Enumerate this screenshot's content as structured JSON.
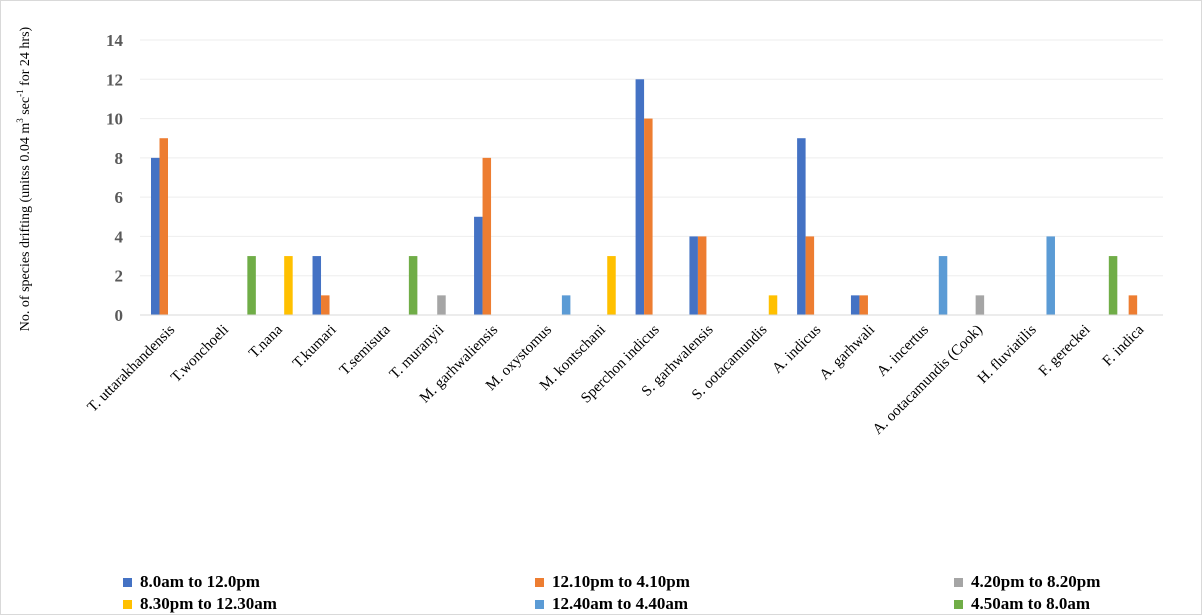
{
  "chart_data": {
    "type": "bar",
    "ylabel": "No. of species drifting (unitss 0.04 m",
    "ylabel_sup1": "3",
    "ylabel_mid": " sec",
    "ylabel_sup2": "-1",
    "ylabel_end": " for 24 hrs)",
    "ylim": [
      0,
      14
    ],
    "ytick_step": 2,
    "yticks": [
      "0",
      "2",
      "4",
      "6",
      "8",
      "10",
      "12",
      "14"
    ],
    "grid": true,
    "legend_position": "bottom",
    "categories": [
      "T. uttarakhandensis",
      "T.wonchoeli",
      "T.nana",
      "T.kumari",
      "T.semisuta",
      "T. muranyii",
      "M. garhwaliensis",
      "M. oxystomus",
      "M. kontschani",
      "Sperchon indicus",
      "S. garhwalensis",
      "S. ootacamundis",
      "A. indicus",
      "A. garhwali",
      "A.  incertus",
      "A. ootacamundis (Cook)",
      "H. fluviatilis",
      "F. gereckei",
      "F. indica"
    ],
    "series": [
      {
        "name": "8.0am to 12.0pm",
        "color": "#4472C4",
        "values": [
          8,
          0,
          0,
          3,
          0,
          0,
          5,
          0,
          0,
          12,
          4,
          0,
          9,
          1,
          0,
          0,
          0,
          0,
          0
        ]
      },
      {
        "name": "12.10pm to 4.10pm",
        "color": "#ED7D31",
        "values": [
          9,
          0,
          0,
          1,
          0,
          0,
          8,
          0,
          0,
          10,
          4,
          0,
          4,
          1,
          0,
          0,
          0,
          0,
          1
        ]
      },
      {
        "name": "4.20pm to 8.20pm",
        "color": "#A5A5A5",
        "values": [
          0,
          0,
          0,
          0,
          0,
          1,
          0,
          0,
          0,
          0,
          0,
          0,
          0,
          0,
          0,
          1,
          0,
          0,
          0
        ]
      },
      {
        "name": "8.30pm to 12.30am",
        "color": "#FFC000",
        "values": [
          0,
          0,
          3,
          0,
          0,
          0,
          0,
          0,
          3,
          0,
          0,
          1,
          0,
          0,
          0,
          0,
          0,
          0,
          0
        ]
      },
      {
        "name": "12.40am to 4.40am",
        "color": "#5B9BD5",
        "values": [
          0,
          0,
          0,
          0,
          0,
          0,
          0,
          1,
          0,
          0,
          0,
          0,
          0,
          0,
          3,
          0,
          4,
          0,
          0
        ]
      },
      {
        "name": "4.50am to 8.0am",
        "color": "#70AD47",
        "values": [
          0,
          3,
          0,
          0,
          3,
          0,
          0,
          0,
          0,
          0,
          0,
          0,
          0,
          0,
          0,
          0,
          0,
          3,
          0
        ]
      }
    ]
  }
}
